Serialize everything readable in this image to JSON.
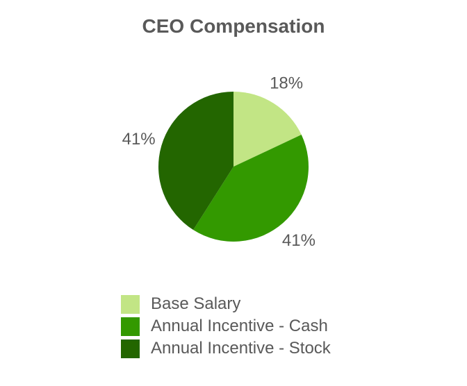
{
  "chart_data": {
    "type": "pie",
    "title": "CEO Compensation",
    "slices": [
      {
        "label": "Base Salary",
        "value": 18,
        "display": "18%",
        "color": "#c2e585"
      },
      {
        "label": "Annual Incentive - Cash",
        "value": 41,
        "display": "41%",
        "color": "#339900"
      },
      {
        "label": "Annual Incentive - Stock",
        "value": 41,
        "display": "41%",
        "color": "#236600"
      }
    ],
    "start_angle": "12 o'clock",
    "direction": "clockwise",
    "legend_position": "bottom"
  }
}
